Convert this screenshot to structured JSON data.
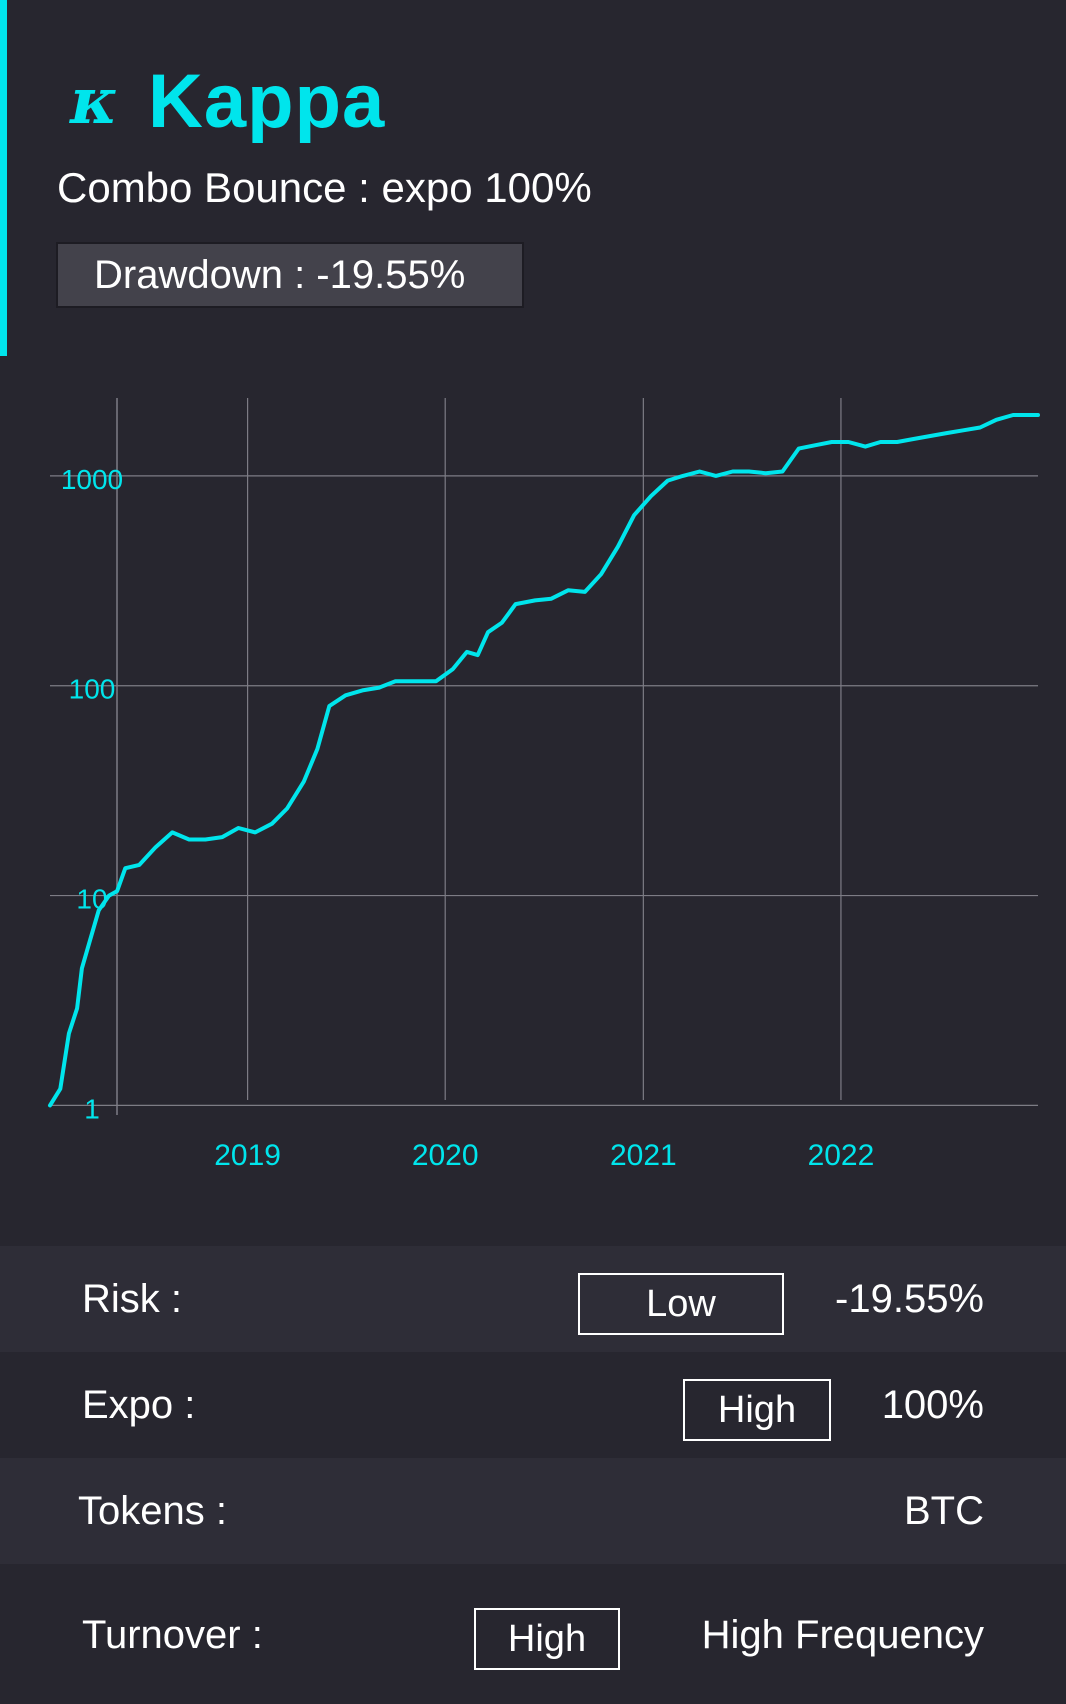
{
  "brand": {
    "logo_mark": "κ",
    "name": "Kappa"
  },
  "strategy": {
    "title": "Combo Bounce : expo 100%",
    "drawdown_label": "Drawdown : -19.55%"
  },
  "colors": {
    "accent": "#00e5ec",
    "background": "#27262f",
    "row_alt": "#2e2d37",
    "box": "#43424b",
    "grid": "#7d7c85"
  },
  "chart_data": {
    "type": "line",
    "title": "",
    "xlabel": "",
    "ylabel": "",
    "y_scale": "log",
    "ylim": [
      0.9,
      2300
    ],
    "xlim": [
      "2018-01-01",
      "2022-12-31"
    ],
    "y_ticks": [
      1,
      10,
      100,
      1000
    ],
    "y_tick_labels": [
      "1",
      "10",
      "100",
      "1000"
    ],
    "x_ticks": [
      "2019-01-01",
      "2020-01-01",
      "2021-01-01",
      "2022-01-01"
    ],
    "x_tick_labels": [
      "2019",
      "2020",
      "2021",
      "2022"
    ],
    "grid": true,
    "legend": "none",
    "series": [
      {
        "color": "#00e5ec",
        "points": [
          [
            "2018-01-01",
            1.0
          ],
          [
            "2018-01-20",
            1.2
          ],
          [
            "2018-02-05",
            2.2
          ],
          [
            "2018-02-20",
            2.9
          ],
          [
            "2018-03-01",
            4.5
          ],
          [
            "2018-03-15",
            6.0
          ],
          [
            "2018-04-01",
            8.5
          ],
          [
            "2018-04-20",
            10.0
          ],
          [
            "2018-05-05",
            10.5
          ],
          [
            "2018-05-20",
            13.5
          ],
          [
            "2018-06-15",
            14.0
          ],
          [
            "2018-07-15",
            17.0
          ],
          [
            "2018-08-15",
            20.0
          ],
          [
            "2018-09-15",
            18.5
          ],
          [
            "2018-10-15",
            18.5
          ],
          [
            "2018-11-15",
            19.0
          ],
          [
            "2018-12-15",
            21.0
          ],
          [
            "2019-01-15",
            20.0
          ],
          [
            "2019-02-15",
            22.0
          ],
          [
            "2019-03-15",
            26.0
          ],
          [
            "2019-04-15",
            35.0
          ],
          [
            "2019-05-10",
            50.0
          ],
          [
            "2019-06-01",
            80.0
          ],
          [
            "2019-07-01",
            90.0
          ],
          [
            "2019-08-01",
            95.0
          ],
          [
            "2019-09-01",
            98.0
          ],
          [
            "2019-10-01",
            105.0
          ],
          [
            "2019-11-15",
            105.0
          ],
          [
            "2019-12-15",
            105.0
          ],
          [
            "2020-01-15",
            120.0
          ],
          [
            "2020-02-10",
            145.0
          ],
          [
            "2020-03-01",
            140.0
          ],
          [
            "2020-03-20",
            180.0
          ],
          [
            "2020-04-15",
            200.0
          ],
          [
            "2020-05-10",
            245.0
          ],
          [
            "2020-06-15",
            255.0
          ],
          [
            "2020-07-15",
            260.0
          ],
          [
            "2020-08-15",
            285.0
          ],
          [
            "2020-09-15",
            280.0
          ],
          [
            "2020-10-15",
            340.0
          ],
          [
            "2020-11-15",
            460.0
          ],
          [
            "2020-12-15",
            650.0
          ],
          [
            "2021-01-15",
            800.0
          ],
          [
            "2021-02-15",
            950.0
          ],
          [
            "2021-03-15",
            1000.0
          ],
          [
            "2021-04-15",
            1050.0
          ],
          [
            "2021-05-15",
            1000.0
          ],
          [
            "2021-06-15",
            1050.0
          ],
          [
            "2021-07-15",
            1050.0
          ],
          [
            "2021-08-15",
            1030.0
          ],
          [
            "2021-09-15",
            1050.0
          ],
          [
            "2021-10-15",
            1350.0
          ],
          [
            "2021-11-15",
            1400.0
          ],
          [
            "2021-12-15",
            1450.0
          ],
          [
            "2022-01-15",
            1450.0
          ],
          [
            "2022-02-15",
            1380.0
          ],
          [
            "2022-03-15",
            1450.0
          ],
          [
            "2022-04-15",
            1450.0
          ],
          [
            "2022-05-15",
            1500.0
          ],
          [
            "2022-06-15",
            1550.0
          ],
          [
            "2022-07-15",
            1600.0
          ],
          [
            "2022-08-15",
            1650.0
          ],
          [
            "2022-09-15",
            1700.0
          ],
          [
            "2022-10-15",
            1850.0
          ],
          [
            "2022-11-15",
            1950.0
          ],
          [
            "2022-12-31",
            1950.0
          ]
        ]
      }
    ]
  },
  "metrics": [
    {
      "label": "Risk :",
      "tag": "Low",
      "value": "-19.55%"
    },
    {
      "label": "Expo :",
      "tag": "High",
      "value": "100%"
    },
    {
      "label": "Tokens :",
      "tag": "",
      "value": "BTC"
    },
    {
      "label": "Turnover :",
      "tag": "High",
      "value": "High Frequency"
    }
  ]
}
